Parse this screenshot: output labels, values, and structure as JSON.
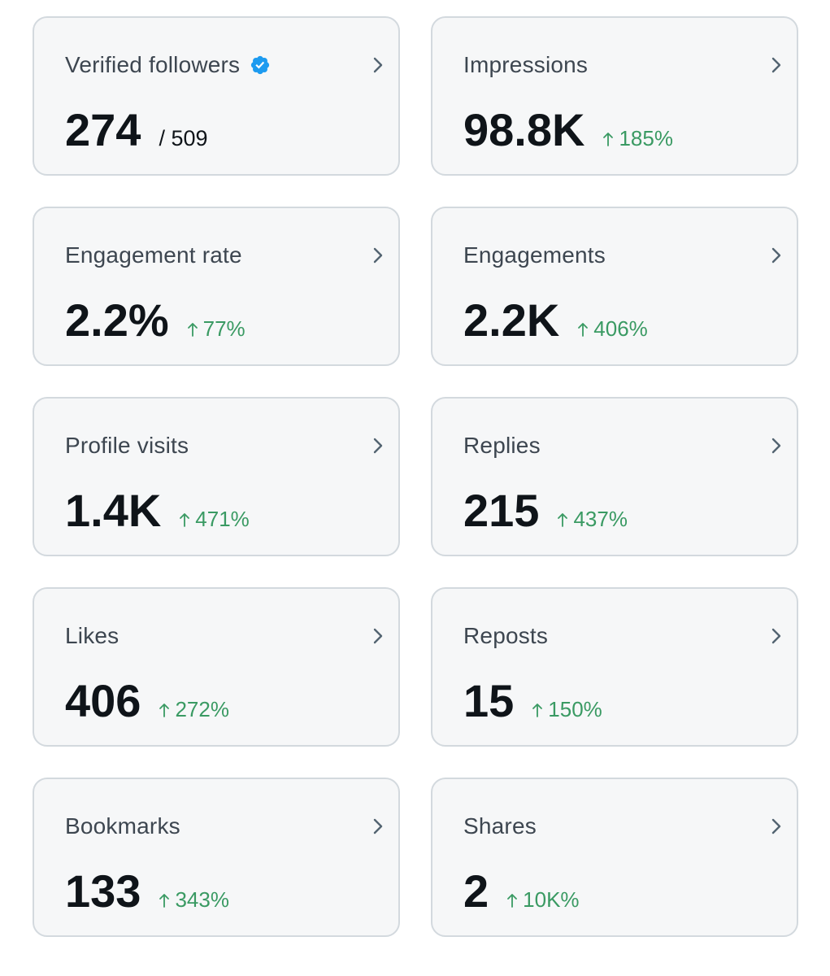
{
  "colors": {
    "card_background": "#f6f7f8",
    "card_border": "#d3d9de",
    "label_text": "#3d4650",
    "value_text": "#0f1419",
    "positive_change": "#3a9a63",
    "verified_badge": "#1d9bf0"
  },
  "icons": {
    "verified": "verified-badge-icon",
    "chevron": "chevron-right-icon",
    "change_arrow": "arrow-up-icon"
  },
  "metrics": [
    {
      "label": "Verified followers",
      "value": "274",
      "secondary": "/ 509"
    },
    {
      "label": "Impressions",
      "value": "98.8K",
      "change": "185%"
    },
    {
      "label": "Engagement rate",
      "value": "2.2%",
      "change": "77%"
    },
    {
      "label": "Engagements",
      "value": "2.2K",
      "change": "406%"
    },
    {
      "label": "Profile visits",
      "value": "1.4K",
      "change": "471%"
    },
    {
      "label": "Replies",
      "value": "215",
      "change": "437%"
    },
    {
      "label": "Likes",
      "value": "406",
      "change": "272%"
    },
    {
      "label": "Reposts",
      "value": "15",
      "change": "150%"
    },
    {
      "label": "Bookmarks",
      "value": "133",
      "change": "343%"
    },
    {
      "label": "Shares",
      "value": "2",
      "change": "10K%"
    }
  ]
}
